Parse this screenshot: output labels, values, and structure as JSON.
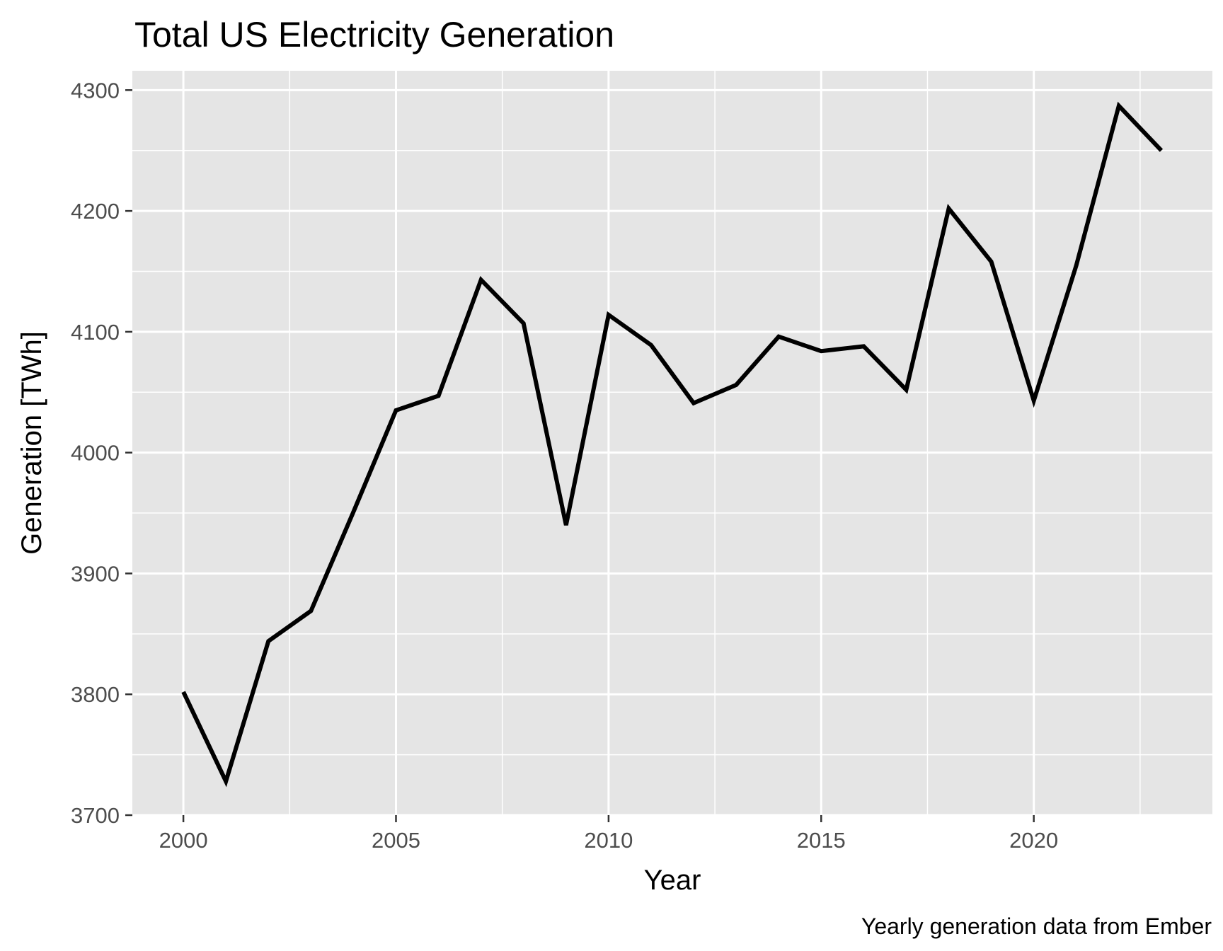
{
  "chart_data": {
    "type": "line",
    "title": "Total US Electricity Generation",
    "xlabel": "Year",
    "ylabel": "Generation [TWh]",
    "caption": "Yearly generation data from Ember",
    "x": [
      2000,
      2001,
      2002,
      2003,
      2004,
      2005,
      2006,
      2007,
      2008,
      2009,
      2010,
      2011,
      2012,
      2013,
      2014,
      2015,
      2016,
      2017,
      2018,
      2019,
      2020,
      2021,
      2022,
      2023
    ],
    "series": [
      {
        "values": [
          3802,
          3728,
          3844,
          3869,
          3951,
          4035,
          4047,
          4143,
          4107,
          3940,
          4114,
          4089,
          4041,
          4056,
          4096,
          4084,
          4088,
          4052,
          4202,
          4158,
          4043,
          4155,
          4287,
          4250
        ]
      }
    ],
    "xlim": [
      1998.8,
      2024.2
    ],
    "ylim": [
      3700,
      4316
    ],
    "x_ticks": [
      2000,
      2005,
      2010,
      2015,
      2020
    ],
    "x_tick_labels": [
      "2000",
      "2005",
      "2010",
      "2015",
      "2020"
    ],
    "y_ticks": [
      3700,
      3800,
      3900,
      4000,
      4100,
      4200,
      4300
    ],
    "y_tick_labels": [
      "3700",
      "3800",
      "3900",
      "4000",
      "4100",
      "4200",
      "4300"
    ],
    "grid": true,
    "colors": {
      "panel_background": "#e5e5e5",
      "grid": "#ffffff",
      "line": "#000000",
      "tick_label": "#4d4d4d",
      "tick_mark": "#333333"
    }
  }
}
